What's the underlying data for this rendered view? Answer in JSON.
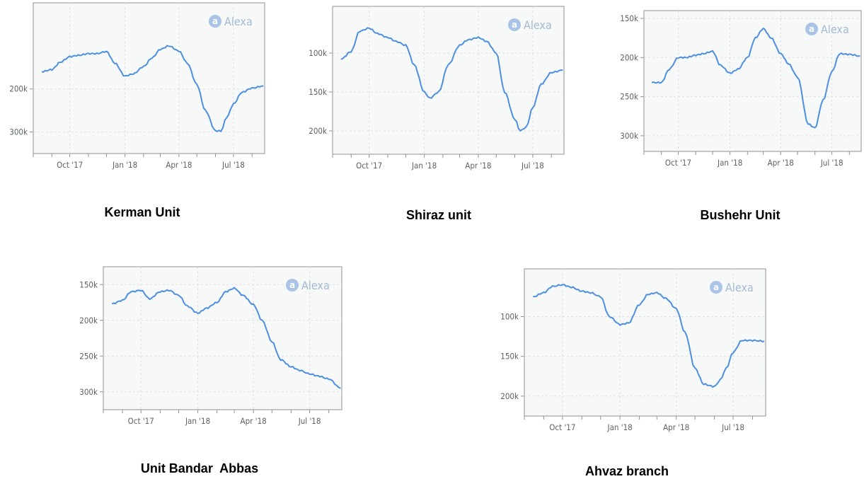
{
  "watermark": "Alexa",
  "line_color": "#4d8fe0",
  "chart_data": [
    {
      "type": "line",
      "caption": "Kerman Unit",
      "title": "",
      "xlabel": "",
      "ylabel": "",
      "x_ticks": [
        "Oct '17",
        "Jan '18",
        "Apr '18",
        "Jul '18"
      ],
      "y_ticks": [
        "200k",
        "300k"
      ],
      "ylim": [
        0,
        350000
      ],
      "y_reversed": true,
      "series": [
        {
          "x": [
            "2017-08-15",
            "2017-09-01",
            "2017-09-15",
            "2017-10-01",
            "2017-10-15",
            "2017-11-01",
            "2017-11-15",
            "2017-12-01",
            "2017-12-15",
            "2018-01-01",
            "2018-01-15",
            "2018-02-01",
            "2018-02-15",
            "2018-03-01",
            "2018-03-15",
            "2018-04-01",
            "2018-04-15",
            "2018-05-01",
            "2018-05-15",
            "2018-06-01",
            "2018-06-10",
            "2018-06-20",
            "2018-07-01",
            "2018-07-15",
            "2018-08-01",
            "2018-08-20"
          ],
          "y": [
            160000,
            155000,
            138000,
            125000,
            122000,
            118000,
            118000,
            113000,
            140000,
            170000,
            165000,
            148000,
            128000,
            108000,
            100000,
            112000,
            140000,
            190000,
            250000,
            297000,
            298000,
            265000,
            235000,
            208000,
            198000,
            193000
          ]
        }
      ]
    },
    {
      "type": "line",
      "caption": "Shiraz unit",
      "title": "",
      "xlabel": "",
      "ylabel": "",
      "x_ticks": [
        "Oct '17",
        "Jan '18",
        "Apr '18",
        "Jul '18"
      ],
      "y_ticks": [
        "100k",
        "150k",
        "200k"
      ],
      "ylim": [
        40000,
        230000
      ],
      "y_reversed": true,
      "series": [
        {
          "x": [
            "2017-08-15",
            "2017-09-01",
            "2017-09-15",
            "2017-10-01",
            "2017-10-15",
            "2017-11-01",
            "2017-11-15",
            "2017-12-01",
            "2017-12-15",
            "2018-01-01",
            "2018-01-10",
            "2018-01-25",
            "2018-02-10",
            "2018-03-01",
            "2018-03-15",
            "2018-04-01",
            "2018-04-15",
            "2018-05-01",
            "2018-05-15",
            "2018-06-01",
            "2018-06-10",
            "2018-06-20",
            "2018-07-01",
            "2018-07-15",
            "2018-08-01",
            "2018-08-20"
          ],
          "y": [
            108000,
            98000,
            72000,
            68000,
            75000,
            80000,
            85000,
            90000,
            115000,
            150000,
            158000,
            150000,
            115000,
            90000,
            83000,
            80000,
            85000,
            100000,
            150000,
            185000,
            200000,
            195000,
            170000,
            140000,
            125000,
            122000
          ]
        }
      ]
    },
    {
      "type": "line",
      "caption": "Bushehr Unit",
      "title": "",
      "xlabel": "",
      "ylabel": "",
      "x_ticks": [
        "Oct '17",
        "Jan '18",
        "Apr '18",
        "Jul '18"
      ],
      "y_ticks": [
        "150k",
        "200k",
        "250k",
        "300k"
      ],
      "ylim": [
        140000,
        320000
      ],
      "y_reversed": true,
      "series": [
        {
          "x": [
            "2017-08-15",
            "2017-09-01",
            "2017-09-15",
            "2017-10-01",
            "2017-10-15",
            "2017-11-01",
            "2017-11-15",
            "2017-12-01",
            "2017-12-15",
            "2018-01-01",
            "2018-01-15",
            "2018-02-01",
            "2018-02-15",
            "2018-03-01",
            "2018-03-15",
            "2018-04-01",
            "2018-04-15",
            "2018-05-01",
            "2018-05-20",
            "2018-06-01",
            "2018-06-15",
            "2018-07-01",
            "2018-07-15",
            "2018-08-01",
            "2018-08-20"
          ],
          "y": [
            232000,
            232000,
            215000,
            200000,
            200000,
            197000,
            195000,
            192000,
            210000,
            220000,
            215000,
            200000,
            175000,
            163000,
            175000,
            195000,
            208000,
            225000,
            285000,
            290000,
            255000,
            218000,
            195000,
            196000,
            198000
          ]
        }
      ]
    },
    {
      "type": "line",
      "caption": "Unit Bandar  Abbas",
      "title": "",
      "xlabel": "",
      "ylabel": "",
      "x_ticks": [
        "Oct '17",
        "Jan '18",
        "Apr '18",
        "Jul '18"
      ],
      "y_ticks": [
        "150k",
        "200k",
        "250k",
        "300k"
      ],
      "ylim": [
        125000,
        325000
      ],
      "y_reversed": true,
      "series": [
        {
          "x": [
            "2017-08-15",
            "2017-09-01",
            "2017-09-15",
            "2017-10-01",
            "2017-10-15",
            "2017-11-01",
            "2017-11-15",
            "2017-12-01",
            "2017-12-15",
            "2018-01-01",
            "2018-01-15",
            "2018-02-01",
            "2018-02-15",
            "2018-03-01",
            "2018-03-15",
            "2018-04-01",
            "2018-04-15",
            "2018-05-01",
            "2018-05-15",
            "2018-06-01",
            "2018-06-15",
            "2018-07-01",
            "2018-07-15",
            "2018-08-01",
            "2018-08-20"
          ],
          "y": [
            177000,
            172000,
            160000,
            158000,
            170000,
            160000,
            158000,
            165000,
            180000,
            190000,
            183000,
            175000,
            160000,
            155000,
            165000,
            178000,
            200000,
            230000,
            255000,
            265000,
            270000,
            275000,
            278000,
            282000,
            295000
          ]
        }
      ]
    },
    {
      "type": "line",
      "caption": "Ahvaz branch",
      "title": "",
      "xlabel": "",
      "ylabel": "",
      "x_ticks": [
        "Oct '17",
        "Jan '18",
        "Apr '18",
        "Jul '18"
      ],
      "y_ticks": [
        "100k",
        "150k",
        "200k"
      ],
      "ylim": [
        40000,
        225000
      ],
      "y_reversed": true,
      "series": [
        {
          "x": [
            "2017-08-15",
            "2017-09-01",
            "2017-09-15",
            "2017-10-01",
            "2017-10-15",
            "2017-11-01",
            "2017-11-15",
            "2017-12-01",
            "2017-12-15",
            "2018-01-01",
            "2018-01-15",
            "2018-02-01",
            "2018-02-15",
            "2018-03-01",
            "2018-03-15",
            "2018-04-01",
            "2018-04-15",
            "2018-05-01",
            "2018-05-15",
            "2018-06-01",
            "2018-06-10",
            "2018-06-20",
            "2018-07-01",
            "2018-07-15",
            "2018-08-01",
            "2018-08-20"
          ],
          "y": [
            75000,
            70000,
            62000,
            60000,
            63000,
            68000,
            70000,
            75000,
            100000,
            110000,
            108000,
            85000,
            72000,
            70000,
            77000,
            90000,
            120000,
            165000,
            185000,
            188000,
            180000,
            165000,
            145000,
            130000,
            130000,
            131000
          ]
        }
      ]
    }
  ]
}
